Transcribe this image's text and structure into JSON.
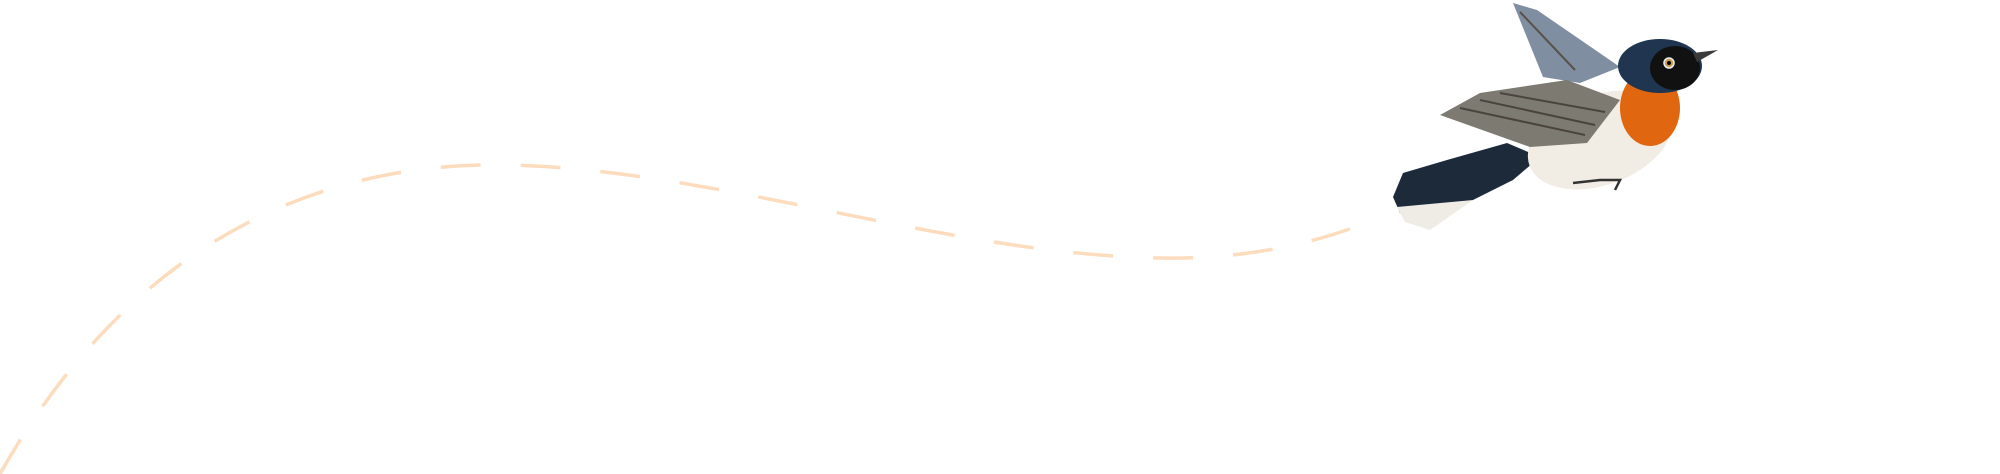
{
  "illustration": {
    "subject": "bird-icon",
    "colors": {
      "flight_path": "#fcdcbd",
      "wing": "#7d7a72",
      "wing_blue": "#8ea3b8",
      "tail": "#1c2a3a",
      "head": "#1f3550",
      "mask": "#111111",
      "throat": "#e0660f",
      "belly": "#f1ede4"
    }
  }
}
